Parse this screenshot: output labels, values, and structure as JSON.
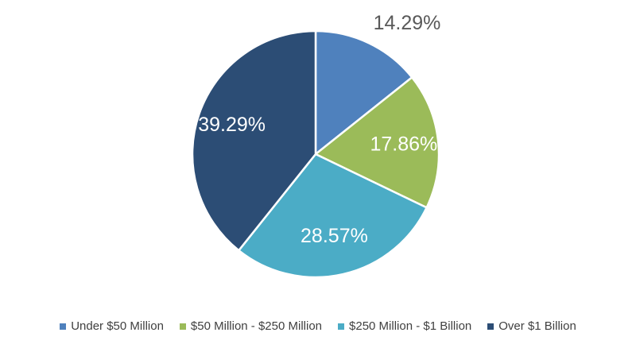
{
  "chart_data": {
    "type": "pie",
    "categories": [
      "Under $50 Million",
      "$50 Million - $250 Million",
      "$250 Million - $1 Billion",
      "Over $1 Billion"
    ],
    "values": [
      14.29,
      17.86,
      28.57,
      39.29
    ],
    "data_labels": [
      "14.29%",
      "17.86%",
      "28.57%",
      "39.29%"
    ],
    "colors": [
      "#4F81BD",
      "#9BBB59",
      "#4BACC6",
      "#2C4D75"
    ],
    "label_colors": [
      "#595959",
      "#ffffff",
      "#ffffff",
      "#ffffff"
    ],
    "legend_position": "bottom",
    "start_angle": "12 o'clock",
    "direction": "clockwise"
  }
}
